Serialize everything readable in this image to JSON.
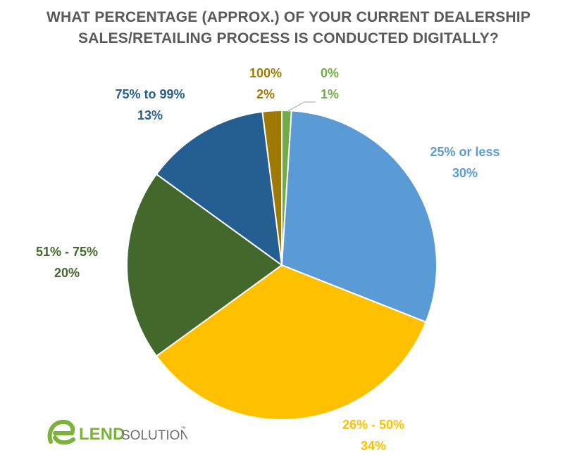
{
  "chart_data": {
    "type": "pie",
    "title_lines": [
      "WHAT PERCENTAGE (APPROX.) OF YOUR CURRENT DEALERSHIP",
      "SALES/RETAILING PROCESS IS CONDUCTED DIGITALLY?"
    ],
    "slices": [
      {
        "label": "0%",
        "value": 1,
        "display": "1%",
        "color": "#70AD47"
      },
      {
        "label": "25% or less",
        "value": 30,
        "display": "30%",
        "color": "#5B9BD5"
      },
      {
        "label": "26% - 50%",
        "value": 34,
        "display": "34%",
        "color": "#FFC000"
      },
      {
        "label": "51% - 75%",
        "value": 20,
        "display": "20%",
        "color": "#43682B"
      },
      {
        "label": "75% to 99%",
        "value": 13,
        "display": "13%",
        "color": "#255E91"
      },
      {
        "label": "100%",
        "value": 2,
        "display": "2%",
        "color": "#9E7A05"
      }
    ],
    "start_angle_deg": 0,
    "direction": "clockwise",
    "legend": "none"
  },
  "logo": {
    "letter": "e",
    "word1": "LEND",
    "word2": "SOLUTIONS",
    "tm": "™",
    "green": "#7AB23A",
    "gray": "#6D6E71"
  }
}
